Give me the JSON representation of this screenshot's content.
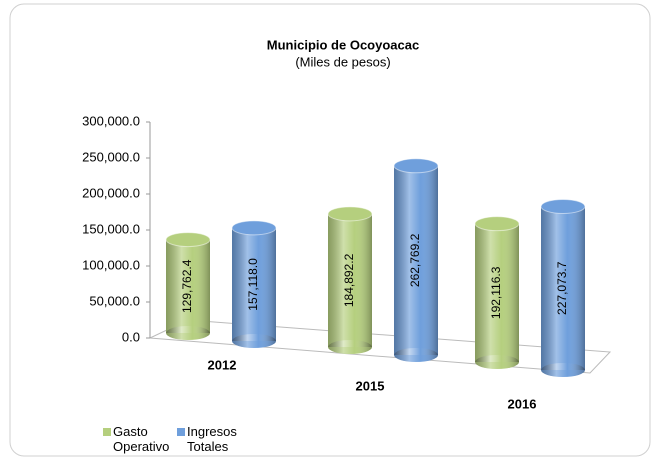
{
  "chart_data": {
    "type": "bar3d",
    "title": "Municipio de Ocoyoacac",
    "subtitle": "(Miles de pesos)",
    "categories": [
      "2012",
      "2015",
      "2016"
    ],
    "series": [
      {
        "name": "Gasto Operativo",
        "color": "#b5cf7e",
        "values": [
          129762.4,
          184892.2,
          192116.3
        ],
        "value_labels": [
          "129,762.4",
          "184,892.2",
          "192,116.3"
        ]
      },
      {
        "name": "Ingresos Totales",
        "color": "#6f9fdc",
        "values": [
          157118.0,
          262769.2,
          227073.7
        ],
        "value_labels": [
          "157,118.0",
          "262,769.2",
          "227,073.7"
        ]
      }
    ],
    "ylim": [
      0,
      300000
    ],
    "yticks": [
      {
        "value": 0,
        "label": "0.0"
      },
      {
        "value": 50000,
        "label": "50,000.0"
      },
      {
        "value": 100000,
        "label": "100,000.0"
      },
      {
        "value": 150000,
        "label": "150,000.0"
      },
      {
        "value": 200000,
        "label": "200,000.0"
      },
      {
        "value": 250000,
        "label": "250,000.0"
      },
      {
        "value": 300000,
        "label": "300,000.0"
      }
    ],
    "legend": "bottom-left"
  }
}
